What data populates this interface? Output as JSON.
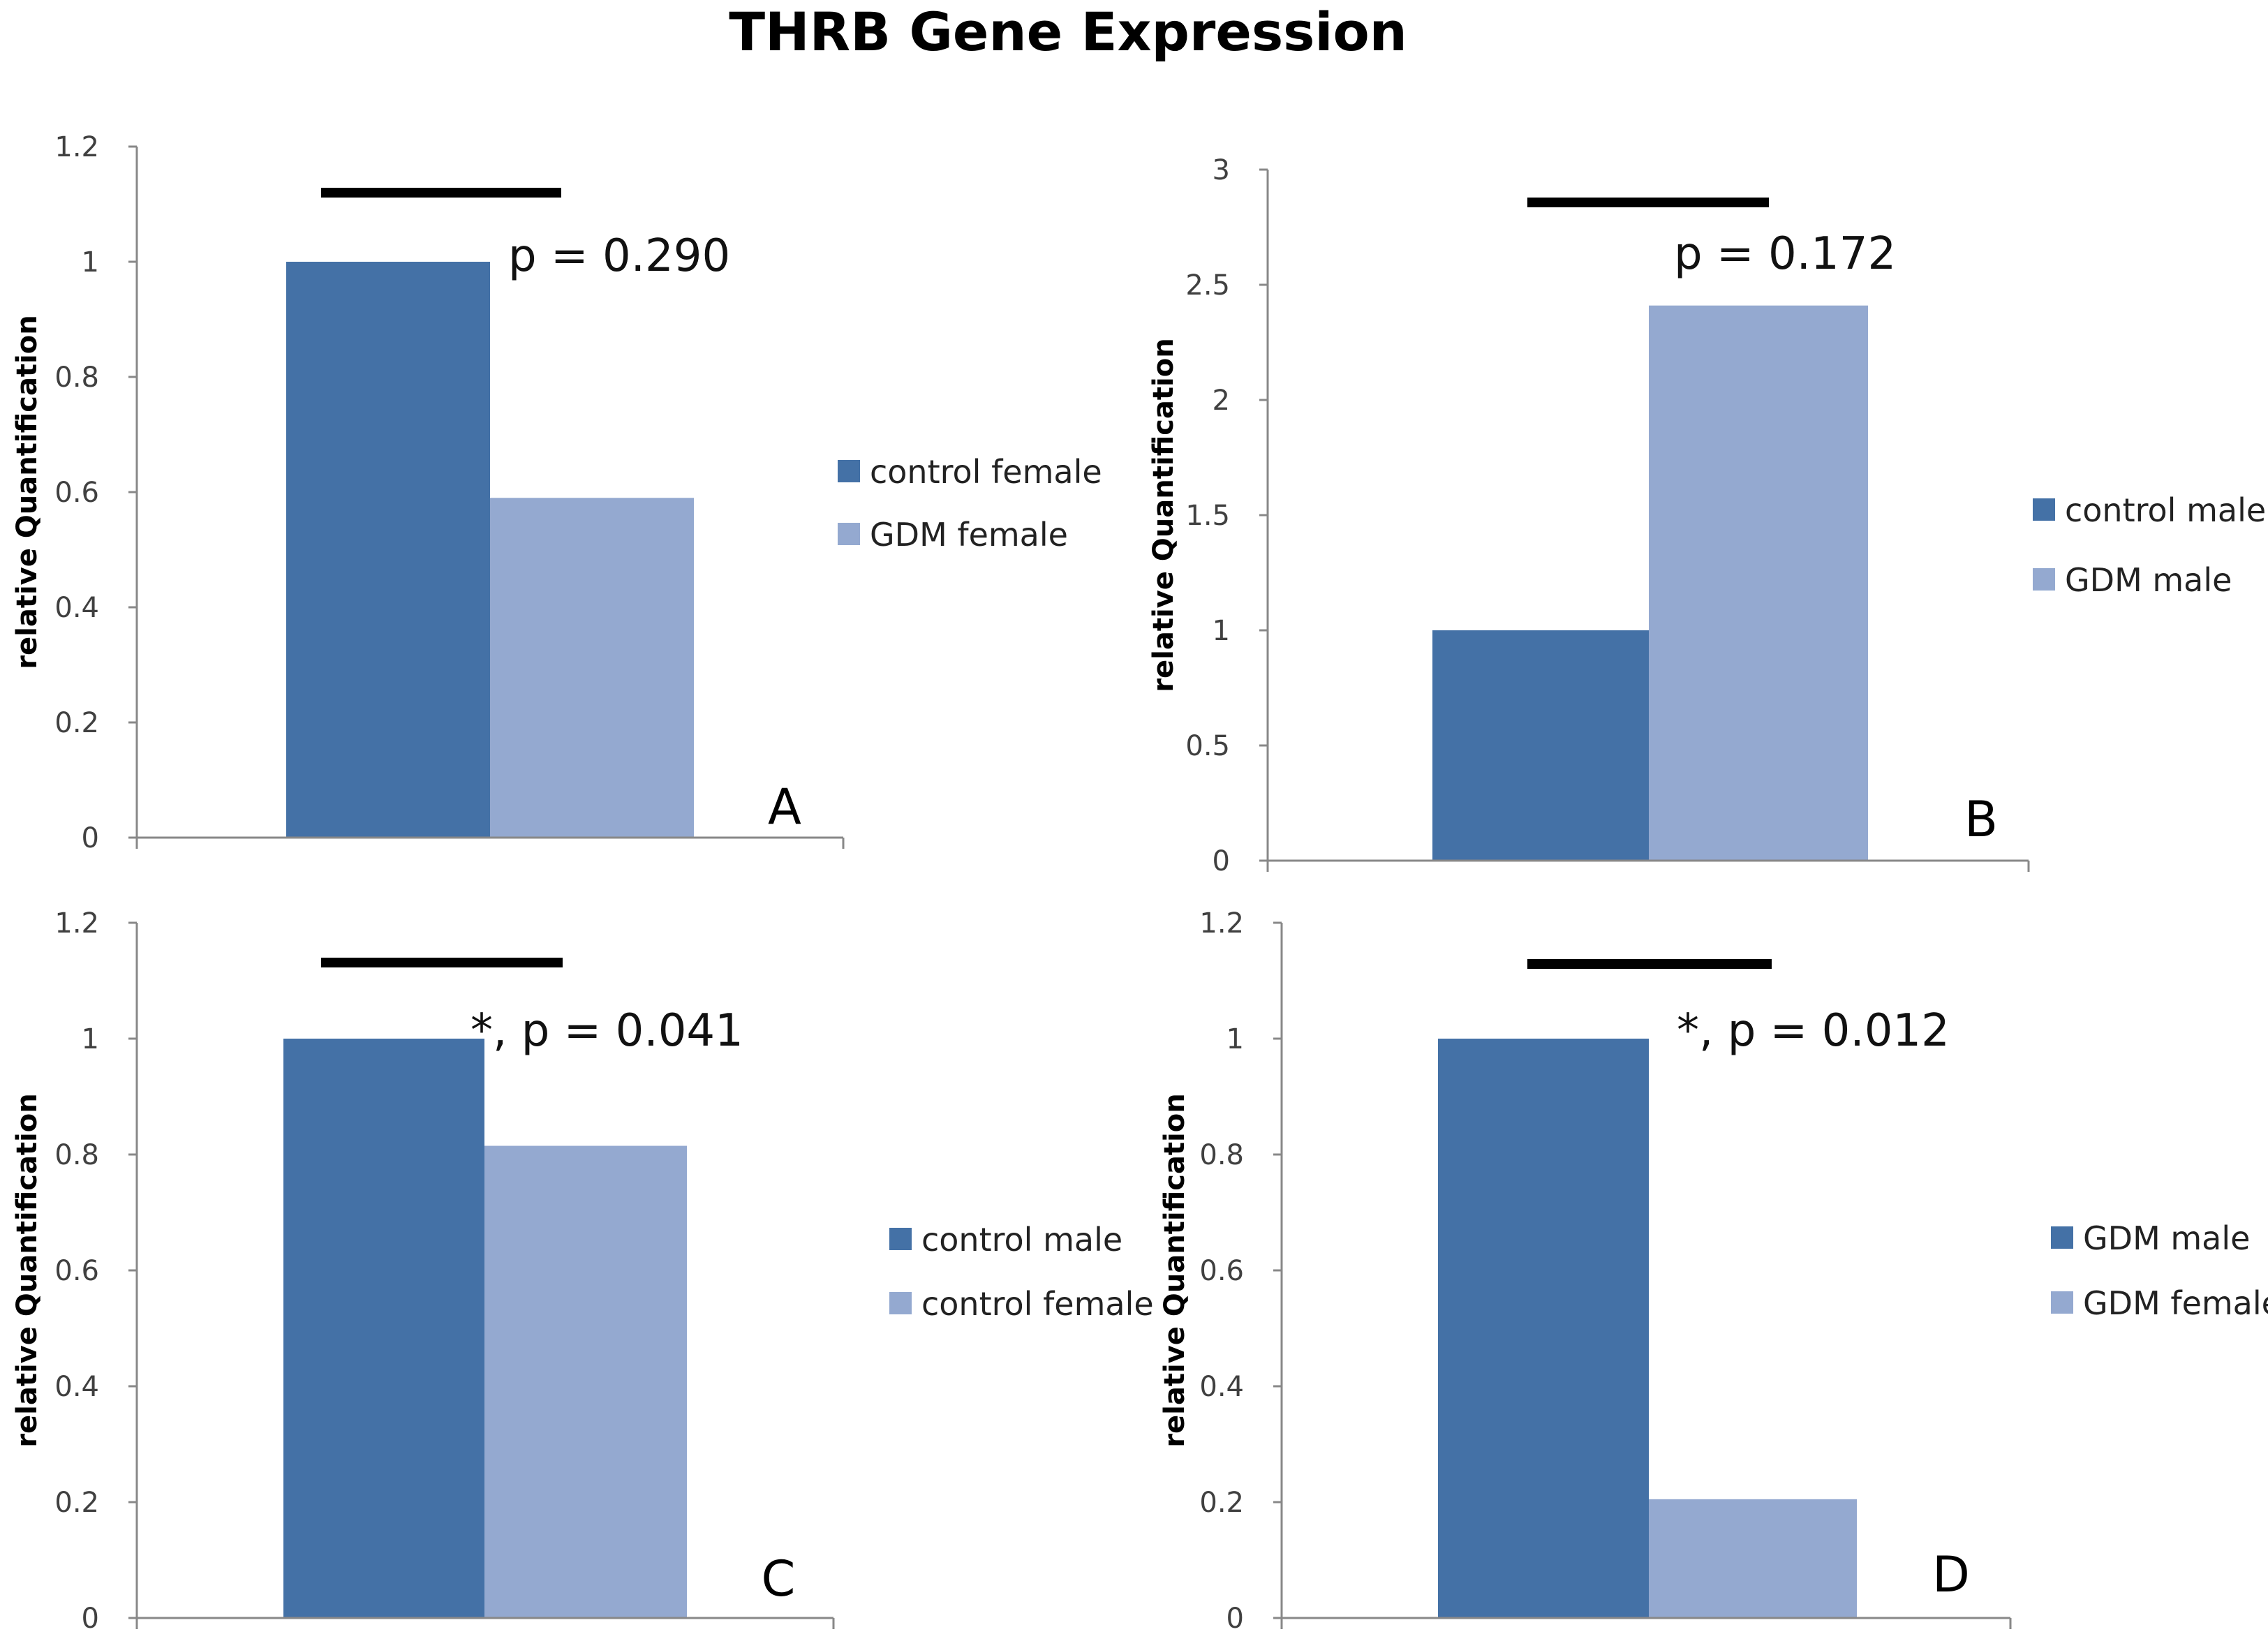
{
  "figure_title": "THRB Gene Expression",
  "colors": {
    "dark": "#4471A6",
    "light": "#94A9D0"
  },
  "chart_data": [
    {
      "panel": "A",
      "type": "bar",
      "ylabel": "relative Quantification",
      "ylim": [
        0,
        1.2
      ],
      "ticks": [
        "0",
        "0.2",
        "0.4",
        "0.6",
        "0.8",
        "1",
        "1.2"
      ],
      "series": [
        {
          "name": "control female",
          "value": 1.0
        },
        {
          "name": "GDM female",
          "value": 0.59
        }
      ],
      "annotation": "p = 0.290"
    },
    {
      "panel": "B",
      "type": "bar",
      "ylabel": "relative Quantification",
      "ylim": [
        0,
        3
      ],
      "ticks": [
        "0",
        "0.5",
        "1",
        "1.5",
        "2",
        "2.5",
        "3"
      ],
      "series": [
        {
          "name": "control male",
          "value": 1.0
        },
        {
          "name": "GDM male",
          "value": 2.41
        }
      ],
      "annotation": "p = 0.172"
    },
    {
      "panel": "C",
      "type": "bar",
      "ylabel": "relative Quantification",
      "ylim": [
        0,
        1.2
      ],
      "ticks": [
        "0",
        "0.2",
        "0.4",
        "0.6",
        "0.8",
        "1",
        "1.2"
      ],
      "series": [
        {
          "name": "control male",
          "value": 1.0
        },
        {
          "name": "control female",
          "value": 0.815
        }
      ],
      "annotation": "*, p = 0.041"
    },
    {
      "panel": "D",
      "type": "bar",
      "ylabel": "relative Quantification",
      "ylim": [
        0,
        1.2
      ],
      "ticks": [
        "0",
        "0.2",
        "0.4",
        "0.6",
        "0.8",
        "1",
        "1.2"
      ],
      "series": [
        {
          "name": "GDM male",
          "value": 1.0
        },
        {
          "name": "GDM female",
          "value": 0.205
        }
      ],
      "annotation": "*, p = 0.012"
    }
  ]
}
